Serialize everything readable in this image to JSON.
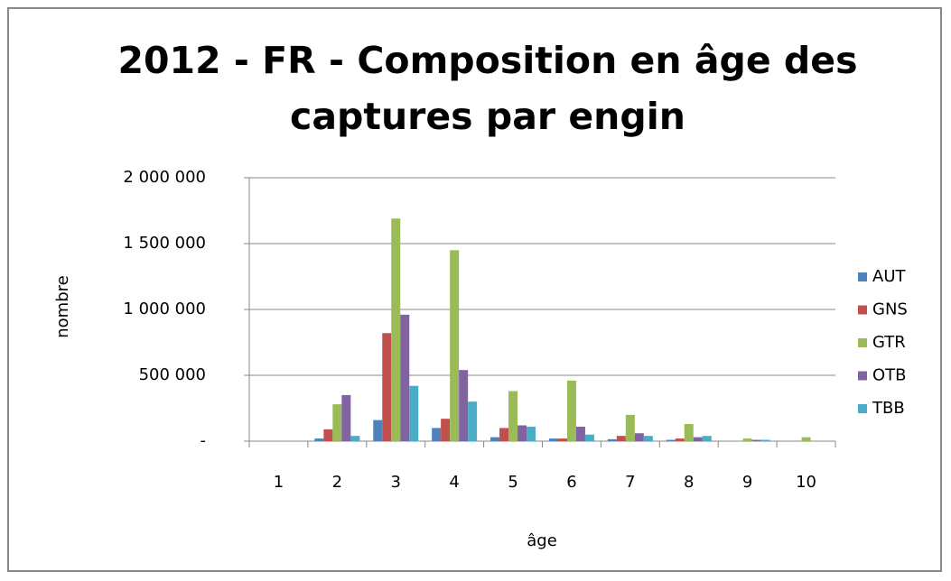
{
  "chart_data": {
    "type": "bar",
    "title": "2012 - FR - Composition en âge des captures par engin",
    "x_label": "âge",
    "y_label": "nombre",
    "categories": [
      "1",
      "2",
      "3",
      "4",
      "5",
      "6",
      "7",
      "8",
      "9",
      "10"
    ],
    "series": [
      {
        "name": "AUT",
        "color": "#4f81bd",
        "values": [
          0,
          20000,
          160000,
          100000,
          30000,
          20000,
          15000,
          10000,
          0,
          0
        ]
      },
      {
        "name": "GNS",
        "color": "#c0504d",
        "values": [
          0,
          90000,
          820000,
          170000,
          100000,
          20000,
          40000,
          20000,
          0,
          0
        ]
      },
      {
        "name": "GTR",
        "color": "#9bbb59",
        "values": [
          0,
          280000,
          1690000,
          1450000,
          380000,
          460000,
          200000,
          130000,
          20000,
          30000
        ]
      },
      {
        "name": "OTB",
        "color": "#8064a2",
        "values": [
          0,
          350000,
          960000,
          540000,
          120000,
          110000,
          60000,
          30000,
          10000,
          0
        ]
      },
      {
        "name": "TBB",
        "color": "#4bacc6",
        "values": [
          0,
          40000,
          420000,
          300000,
          110000,
          50000,
          40000,
          40000,
          10000,
          0
        ]
      }
    ],
    "ylim": [
      0,
      2000000
    ],
    "yticks": [
      {
        "value": 0,
        "label": "-"
      },
      {
        "value": 500000,
        "label": "500 000"
      },
      {
        "value": 1000000,
        "label": "1 000 000"
      },
      {
        "value": 1500000,
        "label": "1 500 000"
      },
      {
        "value": 2000000,
        "label": "2 000 000"
      }
    ],
    "grid": true,
    "legend": "right"
  }
}
